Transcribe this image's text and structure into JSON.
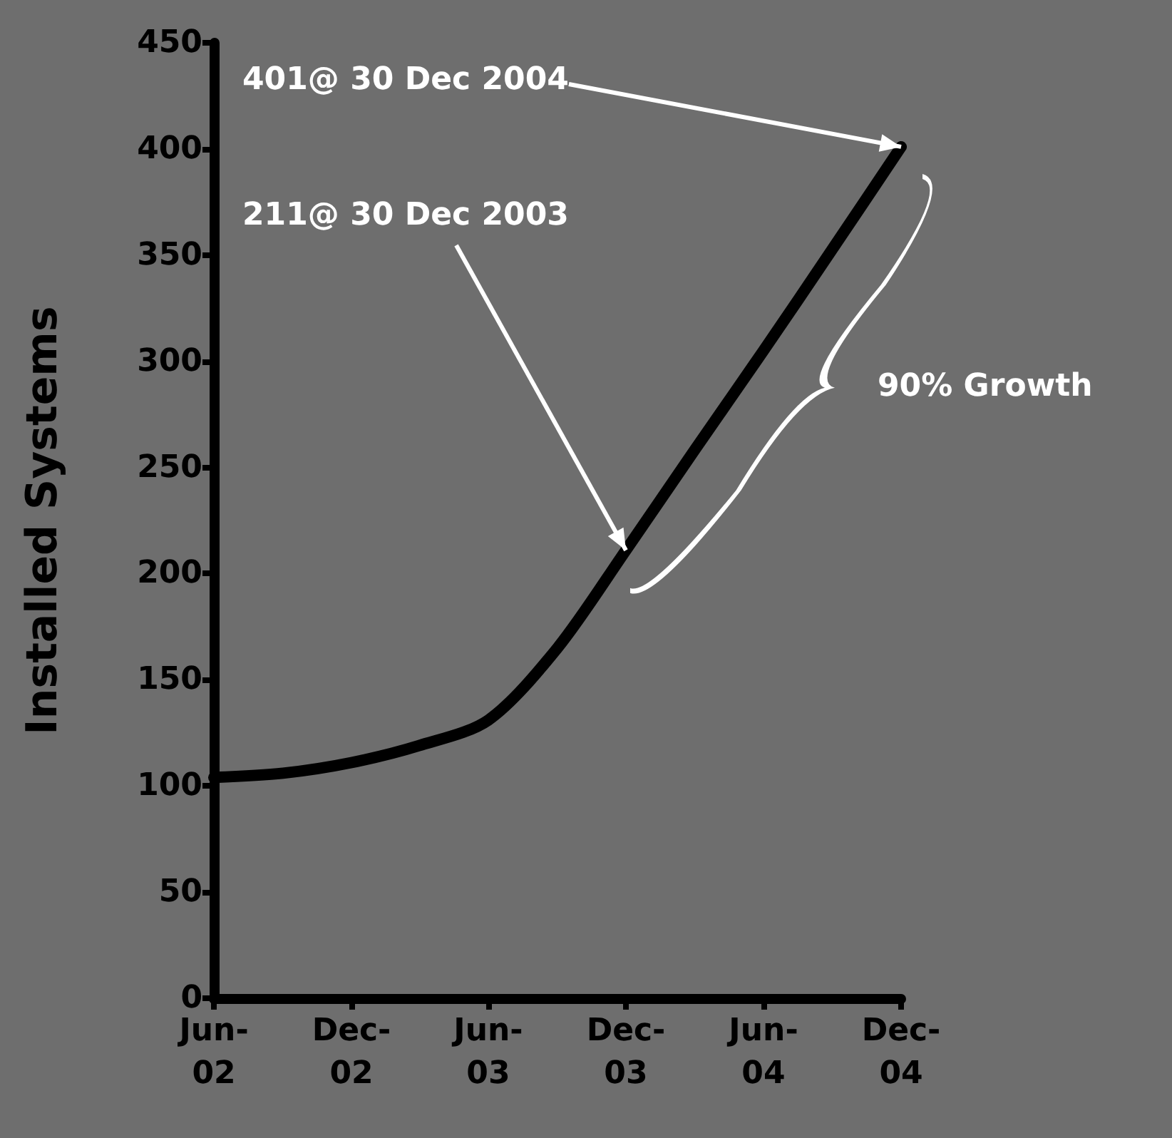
{
  "chart_data": {
    "type": "line",
    "ylabel": "Installed Systems",
    "x": [
      "2002-06",
      "2002-09",
      "2002-12",
      "2003-03",
      "2003-06",
      "2003-09",
      "2003-12",
      "2004-03",
      "2004-06",
      "2004-09",
      "2004-12"
    ],
    "series": [
      {
        "color": "#000000",
        "values": [
          104,
          106,
          111,
          119,
          131,
          165,
          211,
          258,
          305,
          353,
          401
        ]
      }
    ],
    "xlim": [
      "2002-06",
      "2004-12"
    ],
    "xticks": [
      {
        "value": "2002-06",
        "label": "Jun-02"
      },
      {
        "value": "2002-12",
        "label": "Dec-02"
      },
      {
        "value": "2003-06",
        "label": "Jun-03"
      },
      {
        "value": "2003-12",
        "label": "Dec-03"
      },
      {
        "value": "2004-06",
        "label": "Jun-04"
      },
      {
        "value": "2004-12",
        "label": "Dec-04"
      }
    ],
    "ylim": [
      0,
      450
    ],
    "yticks": [
      0,
      50,
      100,
      150,
      200,
      250,
      300,
      350,
      400,
      450
    ],
    "marker": "none",
    "line_style": "solid",
    "grid": false,
    "annotations": [
      {
        "text": "401@ 30 Dec 2004",
        "x": "2004-12",
        "y": 401
      },
      {
        "text": "211@ 30 Dec 2003",
        "x": "2003-12",
        "y": 211
      },
      "90% Growth"
    ]
  }
}
